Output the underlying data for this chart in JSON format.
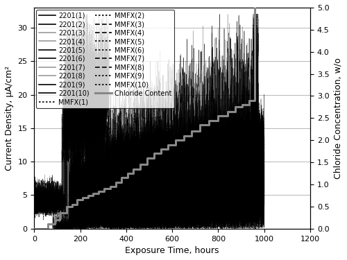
{
  "title": "",
  "xlabel": "Exposure Time, hours",
  "ylabel_left": "Current Density, μA/cm²",
  "ylabel_right": "Chloride Concentration, w/o",
  "xlim": [
    0,
    1200
  ],
  "ylim_left": [
    0,
    33
  ],
  "ylim_right": [
    0.0,
    5.0
  ],
  "yticks_left": [
    0,
    5,
    10,
    15,
    20,
    25,
    30
  ],
  "yticks_right": [
    0.0,
    0.5,
    1.0,
    1.5,
    2.0,
    2.5,
    3.0,
    3.5,
    4.0,
    4.5,
    5.0
  ],
  "xticks": [
    0,
    200,
    400,
    600,
    800,
    1000,
    1200
  ],
  "chloride_steps_x": [
    0,
    60,
    90,
    110,
    140,
    165,
    185,
    210,
    235,
    255,
    280,
    305,
    330,
    355,
    380,
    405,
    430,
    460,
    490,
    520,
    550,
    580,
    615,
    650,
    685,
    720,
    760,
    800,
    840,
    875,
    905,
    935,
    960,
    960
  ],
  "chloride_steps_y": [
    0.0,
    0.1,
    0.2,
    0.35,
    0.5,
    0.55,
    0.65,
    0.7,
    0.75,
    0.8,
    0.85,
    0.9,
    0.95,
    1.05,
    1.15,
    1.25,
    1.35,
    1.45,
    1.6,
    1.7,
    1.8,
    1.9,
    2.0,
    2.1,
    2.2,
    2.35,
    2.45,
    2.55,
    2.65,
    2.75,
    2.8,
    2.9,
    5.0,
    5.0
  ],
  "legend_col1": [
    "2201(1)",
    "2201(3)",
    "2201(5)",
    "2201(7)",
    "2201(9)",
    "MMFX(1)",
    "MMFX(3)",
    "MMFX(5)",
    "MMFX(7)",
    "MMFX(9)",
    "Chloride Content"
  ],
  "legend_col2": [
    "2201(2)",
    "2201(4)",
    "2201(6)",
    "2201(8)",
    "2201(10)",
    "MMFX(2)",
    "MMFX(4)",
    "MMFX(6)",
    "MMFX(8)",
    "MMFX(10)",
    ""
  ],
  "colors_2201": [
    "#000000",
    "#000000",
    "#999999",
    "#999999",
    "#000000",
    "#000000",
    "#999999",
    "#999999",
    "#000000",
    "#000000"
  ],
  "background_color": "#ffffff",
  "fontsize_label": 9,
  "fontsize_tick": 8,
  "fontsize_legend": 7
}
